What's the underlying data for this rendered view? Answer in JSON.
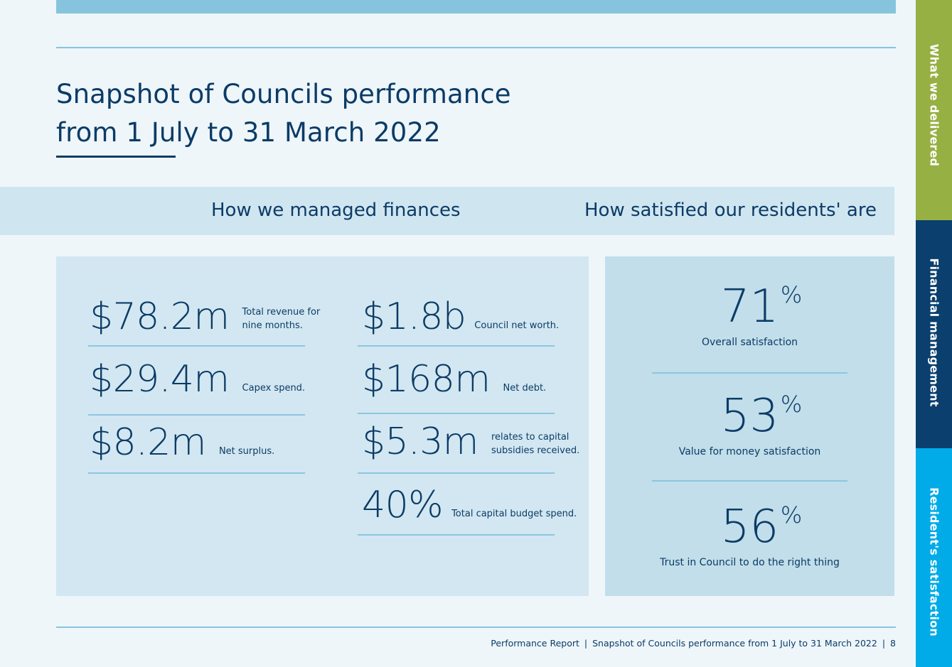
{
  "page": {
    "title_line1": "Snapshot of Councils performance",
    "title_line2": "from 1 July to 31 March 2022"
  },
  "sections": {
    "finances_heading": "How we managed finances",
    "satisfaction_heading": "How satisfied our residents' are"
  },
  "finances": {
    "left": [
      {
        "value": "$78.2m",
        "desc": "Total revenue for\nnine months."
      },
      {
        "value": "$29.4m",
        "desc": "Capex spend."
      },
      {
        "value": "$8.2m",
        "desc": "Net surplus."
      }
    ],
    "right": [
      {
        "value": "$1.8b",
        "desc": "Council net worth."
      },
      {
        "value": "$168m",
        "desc": "Net debt."
      },
      {
        "value": "$5.3m",
        "desc": "relates to capital\nsubsidies received."
      },
      {
        "value": "40%",
        "desc": "Total capital budget spend."
      }
    ]
  },
  "satisfaction": [
    {
      "value": "71",
      "unit": "%",
      "label": "Overall satisfaction"
    },
    {
      "value": "53",
      "unit": "%",
      "label": "Value for money satisfaction"
    },
    {
      "value": "56",
      "unit": "%",
      "label": "Trust in Council to do the right thing"
    }
  ],
  "footer": {
    "report": "Performance Report",
    "section": "Snapshot of Councils performance from 1 July to 31 March 2022",
    "page_number": "8",
    "separator": "|"
  },
  "side_tabs": [
    {
      "label": "What we delivered",
      "color": "#96b043"
    },
    {
      "label": "Financial management",
      "color": "#0a3f6e"
    },
    {
      "label": "Resident's satisfaction",
      "color": "#00abe8"
    }
  ]
}
